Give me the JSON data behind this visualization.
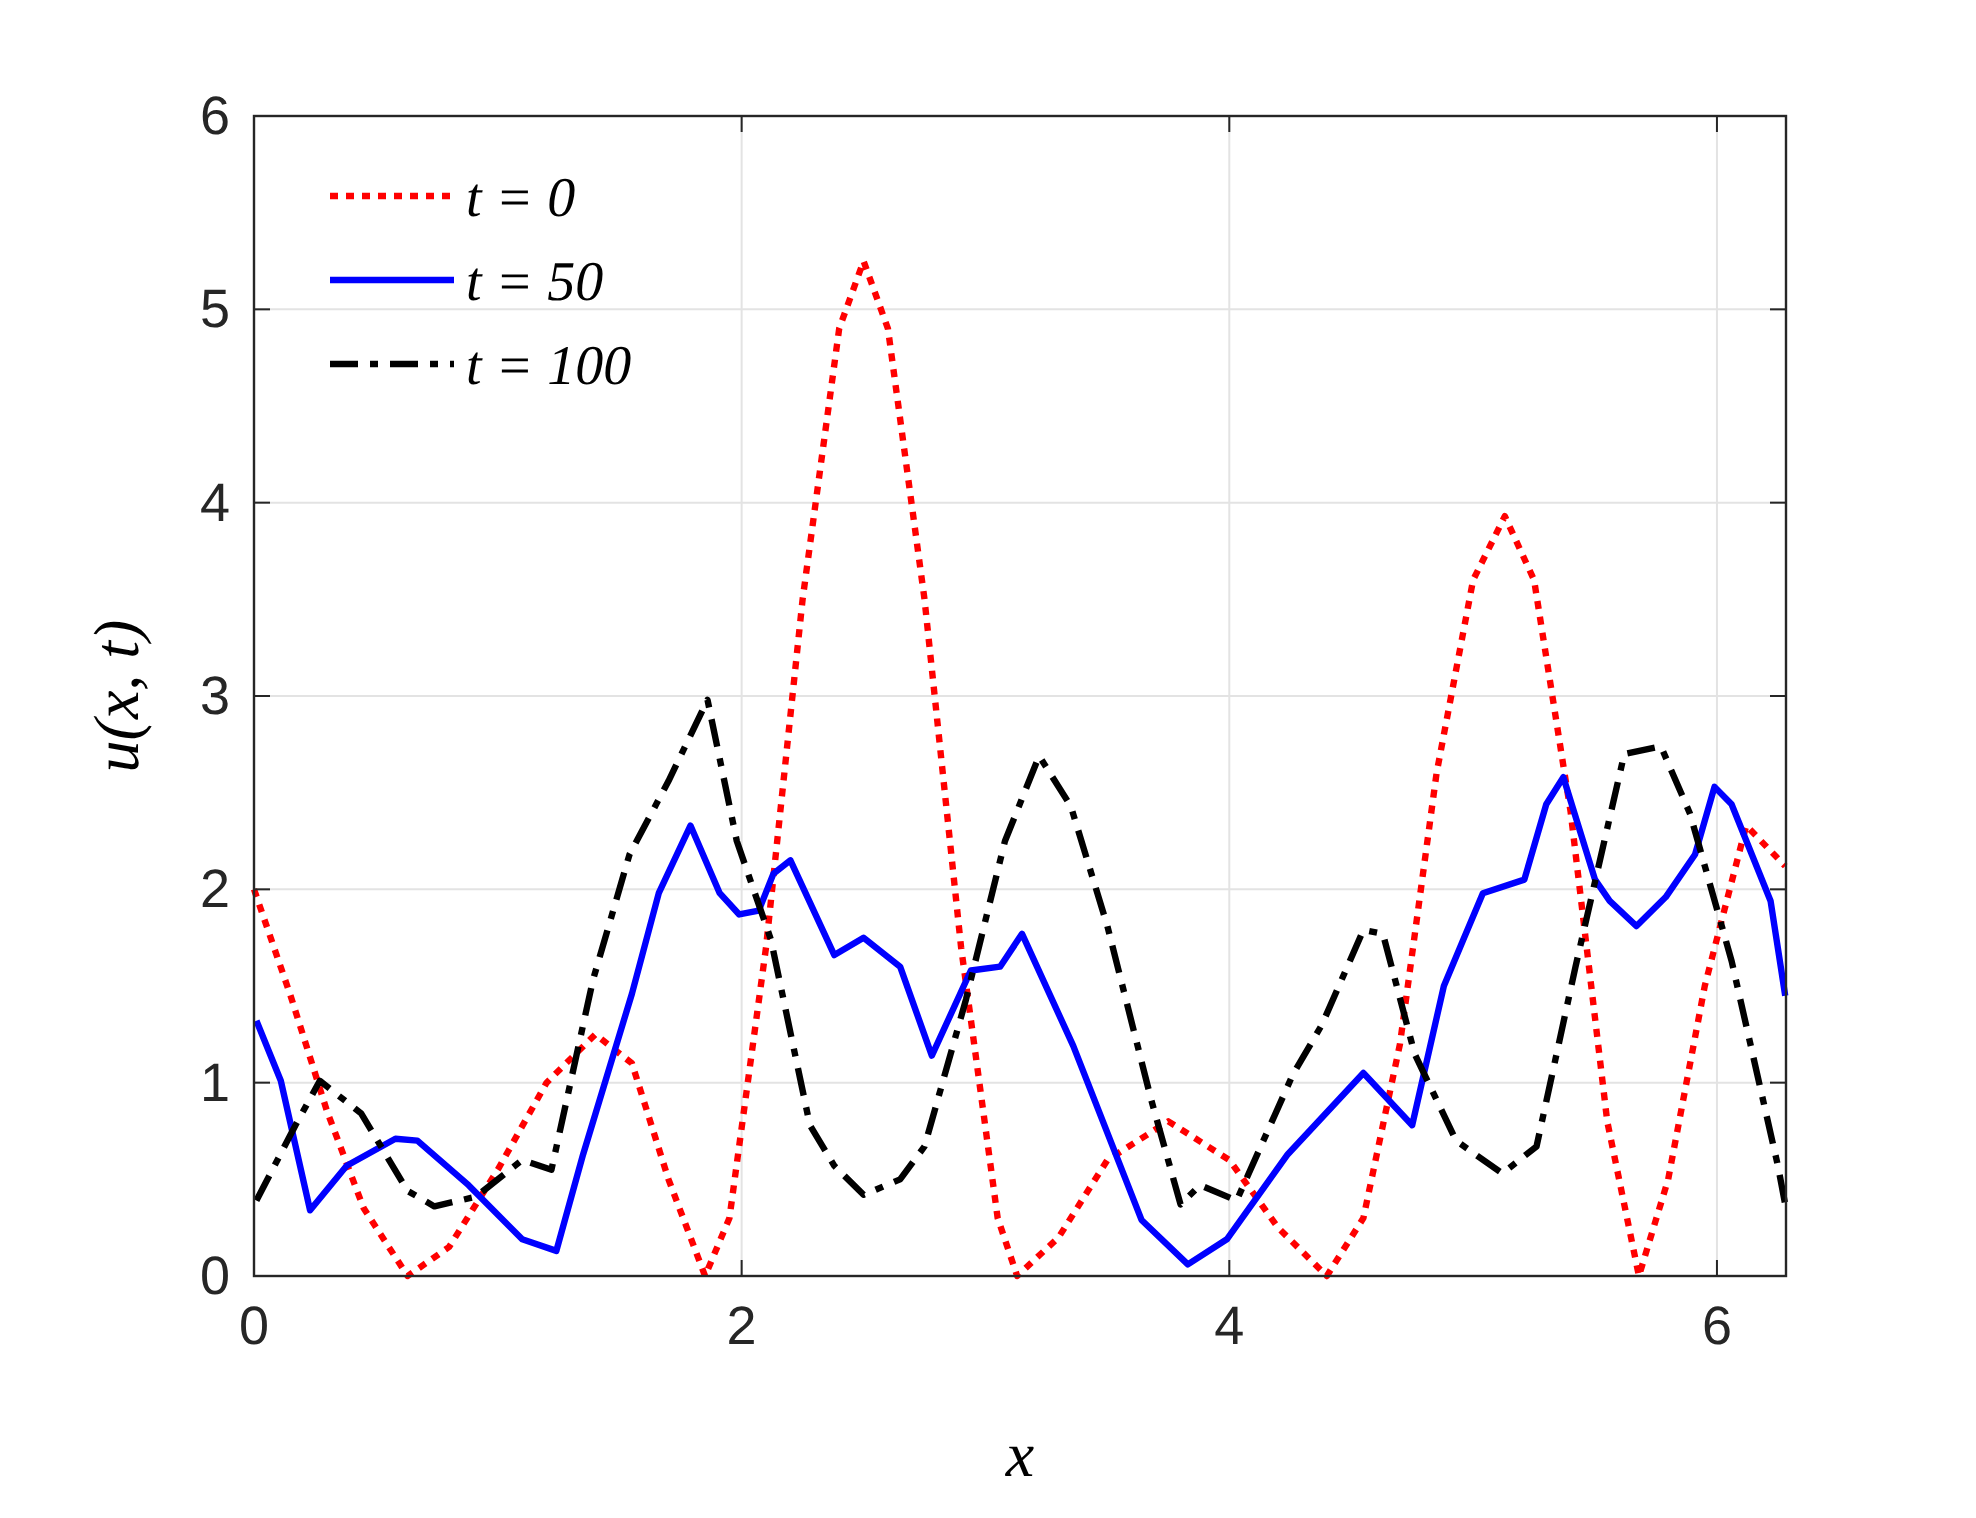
{
  "chart_data": {
    "type": "line",
    "xlabel": "x",
    "ylabel": "u(x, t)",
    "xlim": [
      0,
      6.2832
    ],
    "ylim": [
      0,
      6
    ],
    "xticks": [
      0,
      2,
      4,
      6
    ],
    "yticks": [
      0,
      1,
      2,
      3,
      4,
      5,
      6
    ],
    "grid": true,
    "legend": "top left",
    "series": [
      {
        "name": "t = 0",
        "color": "#ff0000",
        "line_style": "dotted",
        "x": [
          0,
          0.15,
          0.3,
          0.45,
          0.63,
          0.8,
          1.0,
          1.2,
          1.4,
          1.55,
          1.7,
          1.85,
          1.95,
          2.1,
          2.25,
          2.4,
          2.5,
          2.6,
          2.75,
          2.9,
          3.05,
          3.13,
          3.3,
          3.5,
          3.75,
          4.0,
          4.2,
          4.4,
          4.55,
          4.7,
          4.85,
          5.0,
          5.13,
          5.25,
          5.4,
          5.55,
          5.68,
          5.8,
          5.95,
          6.12,
          6.28
        ],
        "values": [
          2.0,
          1.45,
          0.85,
          0.35,
          0,
          0.15,
          0.55,
          1.0,
          1.25,
          1.1,
          0.5,
          0,
          0.3,
          1.7,
          3.5,
          4.9,
          5.25,
          4.9,
          3.5,
          1.7,
          0.3,
          0,
          0.2,
          0.6,
          0.8,
          0.6,
          0.25,
          0,
          0.3,
          1.2,
          2.6,
          3.6,
          3.93,
          3.6,
          2.4,
          0.8,
          0,
          0.5,
          1.5,
          2.33,
          2.12
        ]
      },
      {
        "name": "t = 50",
        "color": "#0000ff",
        "line_style": "solid",
        "x": [
          0.01,
          0.11,
          0.23,
          0.38,
          0.58,
          0.67,
          0.88,
          1.1,
          1.24,
          1.35,
          1.55,
          1.66,
          1.79,
          1.91,
          1.99,
          2.07,
          2.13,
          2.2,
          2.38,
          2.5,
          2.65,
          2.78,
          2.94,
          3.06,
          3.15,
          3.36,
          3.64,
          3.83,
          3.99,
          4.24,
          4.55,
          4.75,
          4.88,
          4.96,
          5.04,
          5.21,
          5.3,
          5.37,
          5.5,
          5.56,
          5.67,
          5.79,
          5.91,
          5.99,
          6.06,
          6.22,
          6.28
        ],
        "values": [
          1.32,
          1.01,
          0.34,
          0.57,
          0.71,
          0.7,
          0.47,
          0.19,
          0.13,
          0.63,
          1.46,
          1.98,
          2.33,
          1.98,
          1.87,
          1.89,
          2.08,
          2.15,
          1.66,
          1.75,
          1.6,
          1.14,
          1.58,
          1.6,
          1.77,
          1.19,
          0.29,
          0.06,
          0.19,
          0.63,
          1.05,
          0.78,
          1.5,
          1.74,
          1.98,
          2.05,
          2.44,
          2.58,
          2.05,
          1.94,
          1.81,
          1.96,
          2.18,
          2.53,
          2.44,
          1.94,
          1.45
        ]
      },
      {
        "name": "t = 100",
        "color": "#000000",
        "line_style": "dashed",
        "x": [
          0.01,
          0.17,
          0.27,
          0.44,
          0.63,
          0.74,
          0.91,
          1.1,
          1.22,
          1.39,
          1.54,
          1.7,
          1.86,
          1.98,
          2.12,
          2.28,
          2.38,
          2.5,
          2.65,
          2.75,
          2.92,
          3.08,
          3.22,
          3.35,
          3.5,
          3.68,
          3.8,
          3.88,
          4.03,
          4.26,
          4.38,
          4.55,
          4.63,
          4.76,
          4.93,
          5.12,
          5.26,
          5.42,
          5.62,
          5.77,
          5.89,
          6.06,
          6.25,
          6.28
        ],
        "values": [
          0.39,
          0.78,
          1.01,
          0.84,
          0.44,
          0.36,
          0.41,
          0.6,
          0.55,
          1.53,
          2.18,
          2.56,
          2.98,
          2.25,
          1.74,
          0.78,
          0.57,
          0.42,
          0.5,
          0.67,
          1.43,
          2.25,
          2.69,
          2.43,
          1.81,
          0.91,
          0.37,
          0.47,
          0.39,
          1.04,
          1.3,
          1.79,
          1.77,
          1.15,
          0.7,
          0.53,
          0.67,
          1.6,
          2.7,
          2.74,
          2.39,
          1.63,
          0.57,
          0.37
        ]
      }
    ]
  }
}
